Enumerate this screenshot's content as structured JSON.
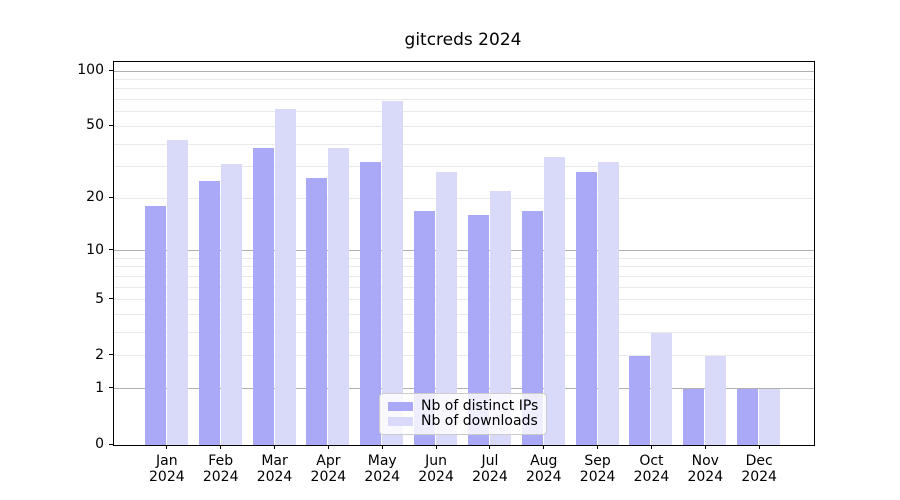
{
  "title": "gitcreds 2024",
  "legend": {
    "items": [
      {
        "label": "Nb of distinct IPs",
        "series": "ips"
      },
      {
        "label": "Nb of downloads",
        "series": "downloads"
      }
    ],
    "position": "bottom-center"
  },
  "colors": {
    "ips_bar": "#a9a9f8",
    "downloads_bar": "#d9d9f9",
    "grid_major": "#b0b0b0",
    "grid_minor": "#e9e9e9",
    "axis": "#000000",
    "legend_border": "#cccccc"
  },
  "chart_data": {
    "type": "bar",
    "title": "gitcreds 2024",
    "categories": [
      "Jan",
      "Feb",
      "Mar",
      "Apr",
      "May",
      "Jun",
      "Jul",
      "Aug",
      "Sep",
      "Oct",
      "Nov",
      "Dec"
    ],
    "category_year": "2024",
    "series": [
      {
        "name": "Nb of distinct IPs",
        "key": "ips",
        "values": [
          18,
          25,
          38,
          26,
          32,
          17,
          16,
          17,
          28,
          2,
          1,
          1
        ]
      },
      {
        "name": "Nb of downloads",
        "key": "downloads",
        "values": [
          42,
          31,
          62,
          38,
          69,
          28,
          22,
          34,
          32,
          3,
          2,
          1
        ]
      }
    ],
    "xlabel": "",
    "ylabel": "",
    "yscale": "log1p",
    "ylim": [
      0,
      112
    ],
    "y_ticks": [
      0,
      1,
      2,
      5,
      10,
      20,
      50,
      100
    ],
    "grid_major_values": [
      1,
      10,
      100
    ],
    "grid_minor_values": [
      2,
      3,
      4,
      5,
      6,
      7,
      8,
      9,
      20,
      30,
      40,
      50,
      60,
      70,
      80,
      90
    ],
    "grid": true,
    "legend_position": "lower center"
  }
}
